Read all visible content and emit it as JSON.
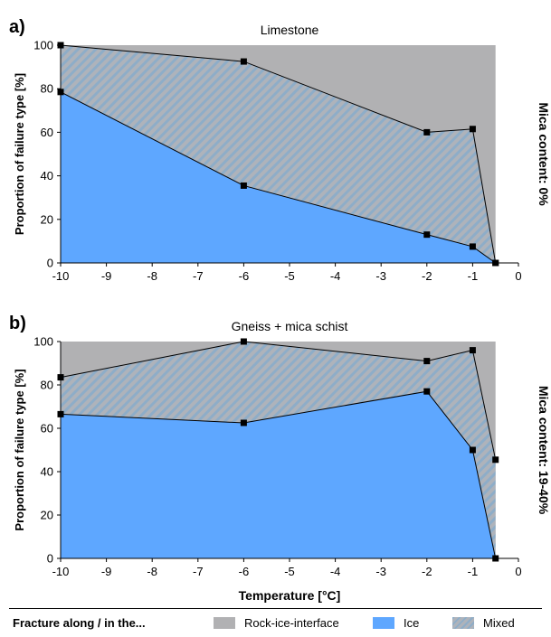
{
  "colors": {
    "interface": "#b1b1b3",
    "ice": "#5ea7ff",
    "mixed_base": "#aeb3bb",
    "mixed_stripe": "#8eadc8",
    "marker": "#000000"
  },
  "legend": {
    "title": "Fracture along / in the...",
    "items": [
      {
        "label": "Rock-ice-interface",
        "color": "#b1b1b3",
        "pattern": "solid"
      },
      {
        "label": "Ice",
        "color": "#5ea7ff",
        "pattern": "solid"
      },
      {
        "label": "Mixed",
        "color": "#8eadc8",
        "pattern": "hatch"
      }
    ]
  },
  "chart_data": [
    {
      "type": "area",
      "panel_label": "a)",
      "title": "Limestone",
      "ylabel": "Proportion of failure type [%]",
      "xlabel": "",
      "right_label": "Mica content: 0%",
      "xlim": [
        -10,
        0
      ],
      "ylim": [
        0,
        100
      ],
      "xticks": [
        -10,
        -9,
        -8,
        -7,
        -6,
        -5,
        -4,
        -3,
        -2,
        -1,
        0
      ],
      "yticks": [
        0,
        20,
        40,
        60,
        80,
        100
      ],
      "x": [
        -10,
        -6,
        -2,
        -1,
        -0.5
      ],
      "series": [
        {
          "name": "Ice",
          "values": [
            78.5,
            35.5,
            13,
            7.5,
            0
          ]
        },
        {
          "name": "Mixed",
          "values": [
            21.5,
            57,
            47,
            54,
            0
          ]
        },
        {
          "name": "Rock-ice-interface",
          "values": [
            0,
            7.5,
            40,
            38.5,
            100
          ]
        }
      ],
      "upper_boundary": [
        100,
        92.5,
        60,
        61.5,
        0
      ]
    },
    {
      "type": "area",
      "panel_label": "b)",
      "title": "Gneiss + mica schist",
      "ylabel": "Proportion of failure type [%]",
      "xlabel": "Temperature [°C]",
      "right_label": "Mica content: 19-40%",
      "xlim": [
        -10,
        0
      ],
      "ylim": [
        0,
        100
      ],
      "xticks": [
        -10,
        -9,
        -8,
        -7,
        -6,
        -5,
        -4,
        -3,
        -2,
        -1,
        0
      ],
      "yticks": [
        0,
        20,
        40,
        60,
        80,
        100
      ],
      "x": [
        -10,
        -6,
        -2,
        -1,
        -0.5
      ],
      "series": [
        {
          "name": "Ice",
          "values": [
            66.5,
            62.5,
            77,
            50,
            0
          ]
        },
        {
          "name": "Mixed",
          "values": [
            17,
            37.5,
            14,
            46,
            45.5
          ]
        },
        {
          "name": "Rock-ice-interface",
          "values": [
            16.5,
            0,
            9,
            4,
            54.5
          ]
        }
      ],
      "upper_boundary": [
        83.5,
        100,
        91,
        96,
        45.5
      ]
    }
  ]
}
